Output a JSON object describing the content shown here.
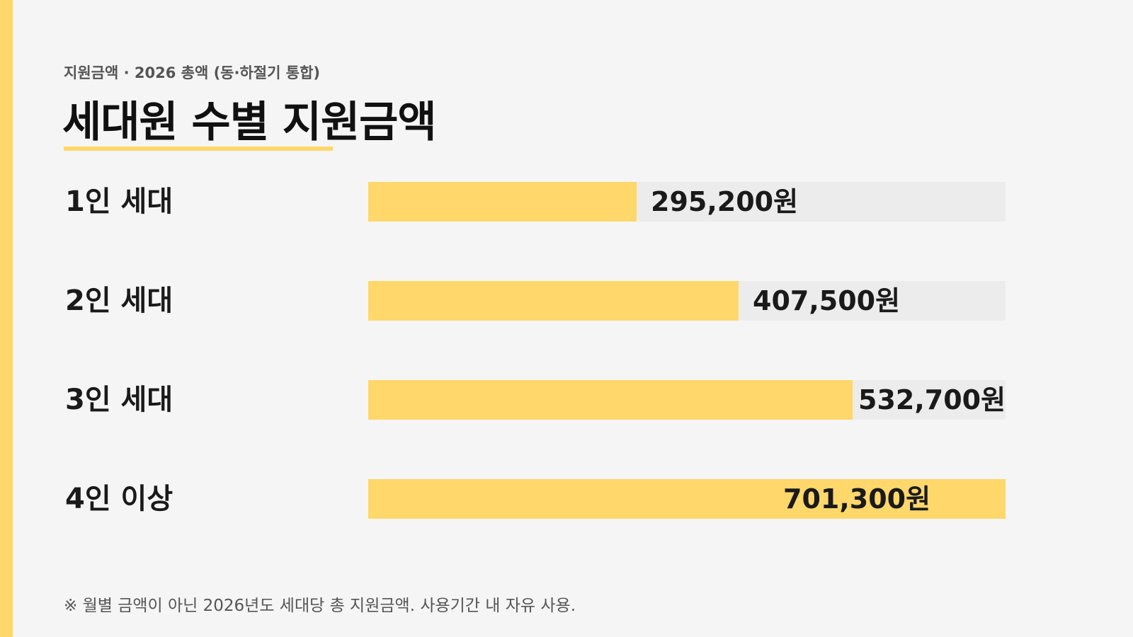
{
  "header": {
    "eyebrow": "지원금액 · 2026 총액 (동·하절기 통합)",
    "title": "세대원 수별 지원금액"
  },
  "colors": {
    "accent": "#ffd76a",
    "track": "#ececec",
    "background": "#f5f5f5"
  },
  "chart_data": {
    "type": "bar",
    "orientation": "horizontal",
    "title": "세대원 수별 지원금액",
    "categories": [
      "1인 세대",
      "2인 세대",
      "3인 세대",
      "4인 이상"
    ],
    "values": [
      295200,
      407500,
      532700,
      701300
    ],
    "value_labels": [
      "295,200원",
      "407,500원",
      "532,700원",
      "701,300원"
    ],
    "xlim": [
      0,
      701300
    ],
    "grid": false,
    "legend": "none"
  },
  "footnote": "※ 월별 금액이 아닌 2026년도 세대당 총 지원금액. 사용기간 내 자유 사용."
}
